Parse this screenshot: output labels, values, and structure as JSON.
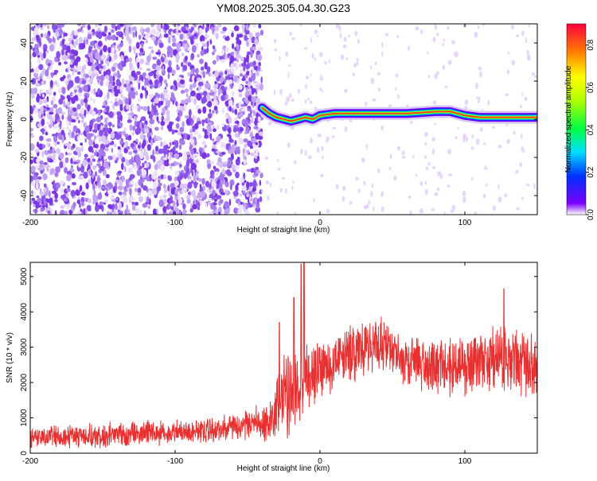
{
  "title": "YM08.2025.305.04.30.G23",
  "chart_data": [
    {
      "type": "heatmap",
      "name": "spectrogram",
      "xlabel": "Height of straight line (km)",
      "ylabel": "Frequency (Hz)",
      "xlim": [
        -200,
        150
      ],
      "ylim": [
        -50,
        50
      ],
      "x_ticks": [
        -200,
        -100,
        0,
        100
      ],
      "y_ticks": [
        -40,
        -20,
        0,
        20,
        40
      ],
      "noise_region": {
        "x_from": -200,
        "x_to": -40,
        "fill_density": "high"
      },
      "signal_line": [
        {
          "x": -40,
          "y": 6
        },
        {
          "x": -35,
          "y": 3
        },
        {
          "x": -30,
          "y": 1
        },
        {
          "x": -25,
          "y": 0
        },
        {
          "x": -20,
          "y": -1
        },
        {
          "x": -15,
          "y": 0
        },
        {
          "x": -10,
          "y": 1
        },
        {
          "x": -5,
          "y": 0
        },
        {
          "x": 0,
          "y": 2
        },
        {
          "x": 10,
          "y": 3
        },
        {
          "x": 20,
          "y": 3
        },
        {
          "x": 40,
          "y": 3
        },
        {
          "x": 60,
          "y": 3
        },
        {
          "x": 80,
          "y": 4
        },
        {
          "x": 90,
          "y": 4
        },
        {
          "x": 95,
          "y": 3
        },
        {
          "x": 100,
          "y": 2
        },
        {
          "x": 110,
          "y": 1
        },
        {
          "x": 130,
          "y": 1
        },
        {
          "x": 150,
          "y": 1
        }
      ],
      "colorbar": {
        "label": "Normalized spectral amplitude",
        "range": [
          0.0,
          0.9
        ],
        "ticks": [
          0.0,
          0.2,
          0.4,
          0.6,
          0.8
        ]
      }
    },
    {
      "type": "line",
      "name": "snr",
      "xlabel": "Height of straight line (km)",
      "ylabel": "SNR (10 * v/v)",
      "xlim": [
        -200,
        150
      ],
      "ylim": [
        0,
        5400
      ],
      "x_ticks": [
        -200,
        -100,
        0,
        100
      ],
      "y_ticks": [
        0,
        1000,
        2000,
        3000,
        4000,
        5000
      ],
      "color": "#e83030",
      "envelope": [
        {
          "x": -200,
          "mean": 450,
          "amp": 350
        },
        {
          "x": -150,
          "mean": 500,
          "amp": 400
        },
        {
          "x": -100,
          "mean": 600,
          "amp": 400
        },
        {
          "x": -60,
          "mean": 700,
          "amp": 450
        },
        {
          "x": -35,
          "mean": 900,
          "amp": 600
        },
        {
          "x": -25,
          "mean": 1600,
          "amp": 1400
        },
        {
          "x": -15,
          "mean": 2000,
          "amp": 1300
        },
        {
          "x": 0,
          "mean": 2400,
          "amp": 1000
        },
        {
          "x": 20,
          "mean": 2800,
          "amp": 900
        },
        {
          "x": 40,
          "mean": 3100,
          "amp": 900
        },
        {
          "x": 60,
          "mean": 2600,
          "amp": 900
        },
        {
          "x": 80,
          "mean": 2500,
          "amp": 900
        },
        {
          "x": 100,
          "mean": 2400,
          "amp": 1000
        },
        {
          "x": 120,
          "mean": 2700,
          "amp": 1100
        },
        {
          "x": 140,
          "mean": 2600,
          "amp": 1100
        },
        {
          "x": 150,
          "mean": 2300,
          "amp": 1000
        }
      ],
      "spikes": [
        {
          "x": -28,
          "y": 3700
        },
        {
          "x": -18,
          "y": 4400
        },
        {
          "x": -13,
          "y": 5350
        },
        {
          "x": -11,
          "y": 5400
        },
        {
          "x": 127,
          "y": 4650
        }
      ]
    }
  ],
  "colors": {
    "noise_purple": "#7a35e6",
    "signal_core": "#e83030"
  }
}
